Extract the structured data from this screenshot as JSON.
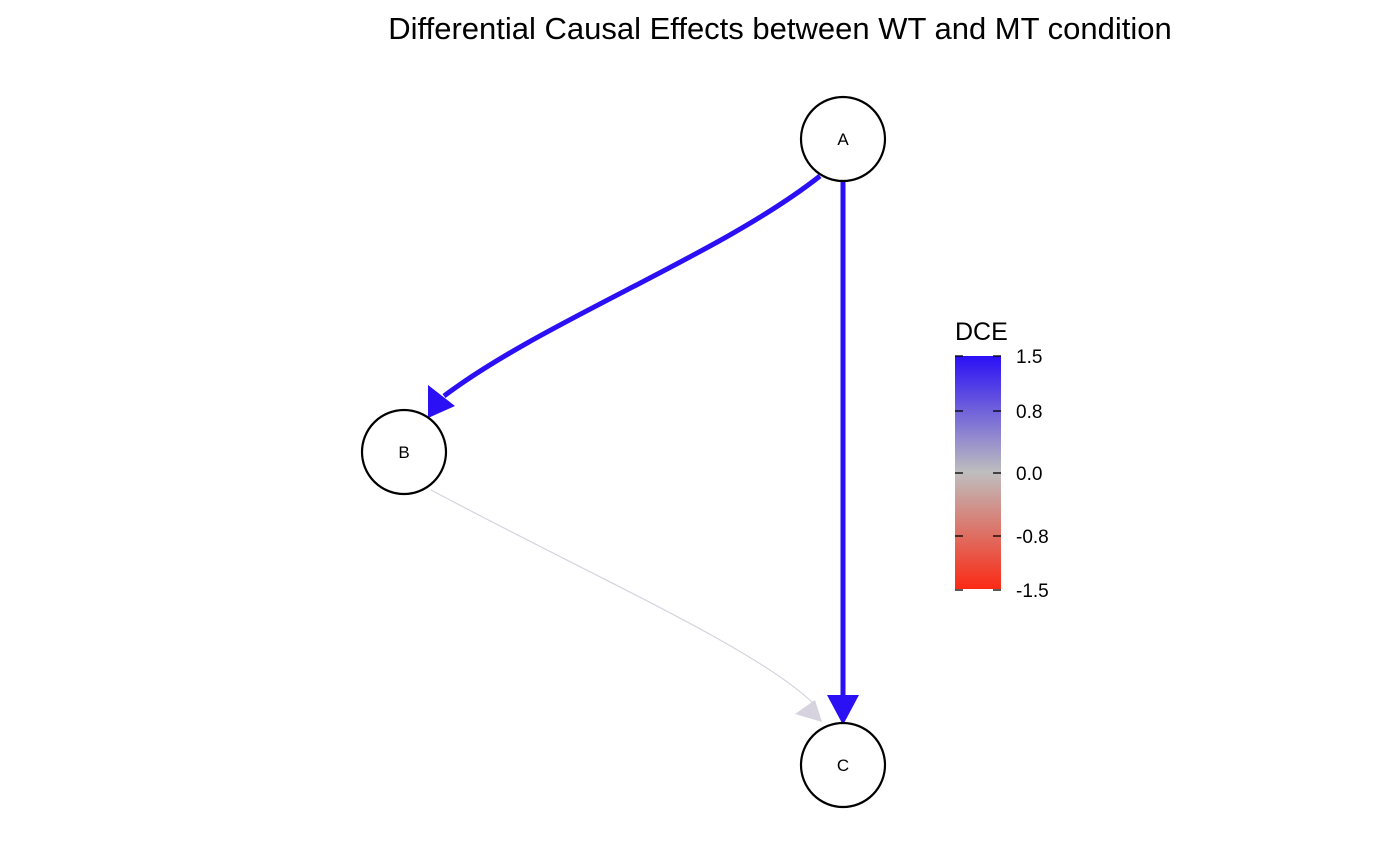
{
  "title": "Differential Causal Effects between WT and MT condition",
  "nodes": [
    {
      "id": "A",
      "label": "A"
    },
    {
      "id": "B",
      "label": "B"
    },
    {
      "id": "C",
      "label": "C"
    }
  ],
  "edges": [
    {
      "from": "A",
      "to": "B",
      "dce": 1.5,
      "color": "#2b10f5"
    },
    {
      "from": "A",
      "to": "C",
      "dce": 1.5,
      "color": "#2b10f5"
    },
    {
      "from": "B",
      "to": "C",
      "dce": 0.0,
      "color": "#d6d3de"
    }
  ],
  "legend": {
    "title": "DCE",
    "colors": {
      "high": "#2b10f5",
      "mid": "#bebebe",
      "low": "#fa2a14"
    },
    "ticks": [
      "1.5",
      "0.8",
      "0.0",
      "-0.8",
      "-1.5"
    ]
  }
}
